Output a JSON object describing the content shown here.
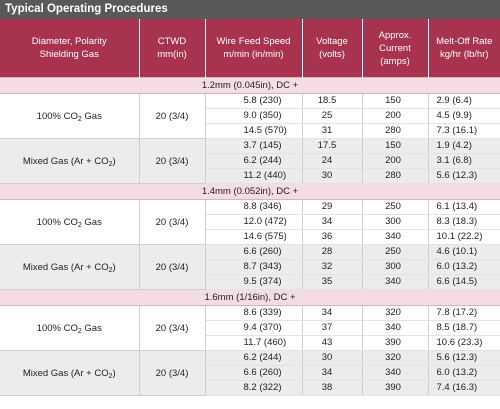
{
  "title": "Typical Operating Procedures",
  "headers": {
    "diameter": [
      "Diameter, Polarity",
      "Shielding Gas"
    ],
    "ctwd": [
      "CTWD",
      "mm(in)"
    ],
    "wfs": [
      "Wire Feed Speed",
      "m/min (in/min)"
    ],
    "voltage": [
      "Voltage",
      "(volts)"
    ],
    "current": [
      "Approx.",
      "Current",
      "(amps)"
    ],
    "melt": [
      "Melt-Off Rate",
      "kg/hr (lb/hr)"
    ]
  },
  "sections": [
    {
      "label": "1.2mm (0.045in), DC +",
      "groups": [
        {
          "gas_main": "100% CO",
          "gas_sub": "2",
          "gas_rest": " Gas",
          "ctwd": "20 (3/4)",
          "rows": [
            {
              "wfs": "5.8 (230)",
              "voltage": "18.5",
              "current": "150",
              "melt": "2.9 (6.4)"
            },
            {
              "wfs": "9.0 (350)",
              "voltage": "25",
              "current": "200",
              "melt": "4.5 (9.9)"
            },
            {
              "wfs": "14.5 (570)",
              "voltage": "31",
              "current": "280",
              "melt": "7.3 (16.1)"
            }
          ]
        },
        {
          "gas_main": "Mixed Gas (Ar + CO",
          "gas_sub": "2",
          "gas_rest": ")",
          "ctwd": "20 (3/4)",
          "rows": [
            {
              "wfs": "3.7 (145)",
              "voltage": "17.5",
              "current": "150",
              "melt": "1.9 (4.2)"
            },
            {
              "wfs": "6.2 (244)",
              "voltage": "24",
              "current": "200",
              "melt": "3.1 (6.8)"
            },
            {
              "wfs": "11.2 (440)",
              "voltage": "30",
              "current": "280",
              "melt": "5.6 (12.3)"
            }
          ]
        }
      ]
    },
    {
      "label": "1.4mm (0.052in), DC +",
      "groups": [
        {
          "gas_main": "100% CO",
          "gas_sub": "2",
          "gas_rest": " Gas",
          "ctwd": "20 (3/4)",
          "rows": [
            {
              "wfs": "8.8 (346)",
              "voltage": "29",
              "current": "250",
              "melt": "6.1 (13.4)"
            },
            {
              "wfs": "12.0 (472)",
              "voltage": "34",
              "current": "300",
              "melt": "8.3 (18.3)"
            },
            {
              "wfs": "14.6 (575)",
              "voltage": "36",
              "current": "340",
              "melt": "10.1 (22.2)"
            }
          ]
        },
        {
          "gas_main": "Mixed Gas (Ar + CO",
          "gas_sub": "2",
          "gas_rest": ")",
          "ctwd": "20 (3/4)",
          "rows": [
            {
              "wfs": "6.6 (260)",
              "voltage": "28",
              "current": "250",
              "melt": "4.6 (10.1)"
            },
            {
              "wfs": "8.7 (343)",
              "voltage": "32",
              "current": "300",
              "melt": "6.0 (13.2)"
            },
            {
              "wfs": "9.5 (374)",
              "voltage": "35",
              "current": "340",
              "melt": "6.6 (14.5)"
            }
          ]
        }
      ]
    },
    {
      "label": "1.6mm (1/16in), DC +",
      "groups": [
        {
          "gas_main": "100% CO",
          "gas_sub": "2",
          "gas_rest": " Gas",
          "ctwd": "20 (3/4)",
          "rows": [
            {
              "wfs": "8.6 (339)",
              "voltage": "34",
              "current": "320",
              "melt": "7.8 (17.2)"
            },
            {
              "wfs": "9.4 (370)",
              "voltage": "37",
              "current": "340",
              "melt": "8.5 (18.7)"
            },
            {
              "wfs": "11.7 (460)",
              "voltage": "43",
              "current": "390",
              "melt": "10.6 (23.3)"
            }
          ]
        },
        {
          "gas_main": "Mixed Gas (Ar + CO",
          "gas_sub": "2",
          "gas_rest": ")",
          "ctwd": "20 (3/4)",
          "rows": [
            {
              "wfs": "6.2 (244)",
              "voltage": "30",
              "current": "320",
              "melt": "5.6 (12.3)"
            },
            {
              "wfs": "6.6 (260)",
              "voltage": "34",
              "current": "340",
              "melt": "6.0 (13.2)"
            },
            {
              "wfs": "8.2 (322)",
              "voltage": "38",
              "current": "390",
              "melt": "7.4 (16.3)"
            }
          ]
        }
      ]
    }
  ]
}
